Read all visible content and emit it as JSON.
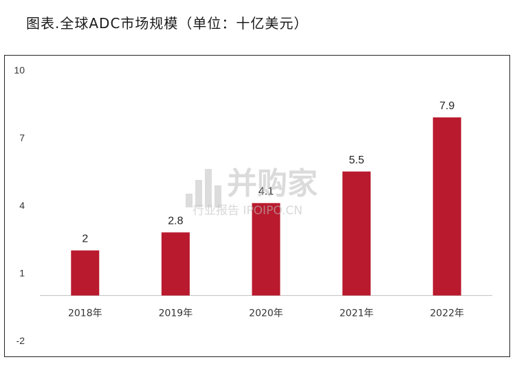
{
  "figure_title": "图表.全球ADC市场规模（单位：十亿美元）",
  "watermark": {
    "brand": "并购家",
    "tagline": "行业报告 IPOIPO.CN"
  },
  "chart_data": {
    "type": "bar",
    "categories": [
      "2018年",
      "2019年",
      "2020年",
      "2021年",
      "2022年"
    ],
    "values": [
      2,
      2.8,
      4.1,
      5.5,
      7.9
    ],
    "data_labels": [
      "2",
      "2.8",
      "4.1",
      "5.5",
      "7.9"
    ],
    "ylim": [
      -2,
      10
    ],
    "yticks": [
      "10",
      "7",
      "4",
      "1",
      "-2"
    ],
    "ytick_values": [
      10,
      7,
      4,
      1,
      -2
    ],
    "grid": false,
    "legend": "none",
    "bar_color": "#b91a2e"
  }
}
